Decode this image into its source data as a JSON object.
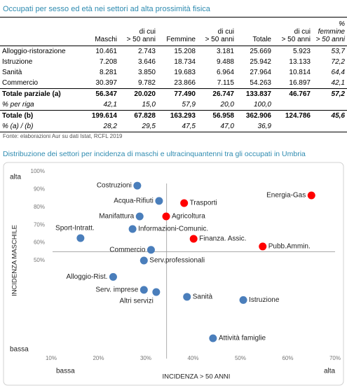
{
  "table": {
    "title": "Occupati per sesso ed età nei settori ad alta prossimità fisica",
    "header": [
      [
        ""
      ],
      [
        "Maschi"
      ],
      [
        "di cui",
        "> 50 anni"
      ],
      [
        "Femmine"
      ],
      [
        "di cui",
        "> 50 anni"
      ],
      [
        "Totale"
      ],
      [
        "di cui",
        "> 50 anni"
      ],
      [
        "%",
        "femmine",
        "> 50 anni"
      ]
    ],
    "rows": [
      [
        "Alloggio-ristorazione",
        "10.461",
        "2.743",
        "15.208",
        "3.181",
        "25.669",
        "5.923",
        "53,7"
      ],
      [
        "Istruzione",
        "7.208",
        "3.646",
        "18.734",
        "9.488",
        "25.942",
        "13.133",
        "72,2"
      ],
      [
        "Sanità",
        "8.281",
        "3.850",
        "19.683",
        "6.964",
        "27.964",
        "10.814",
        "64,4"
      ],
      [
        "Commercio",
        "30.397",
        "9.782",
        "23.866",
        "7.115",
        "54.263",
        "16.897",
        "42,1"
      ],
      [
        "Totale parziale (a)",
        "56.347",
        "20.020",
        "77.490",
        "26.747",
        "133.837",
        "46.767",
        "57,2"
      ],
      [
        "% per riga",
        "42,1",
        "15,0",
        "57,9",
        "20,0",
        "100,0",
        "",
        ""
      ],
      [
        "Totale (b)",
        "199.614",
        "67.828",
        "163.293",
        "56.958",
        "362.906",
        "124.786",
        "45,6"
      ],
      [
        "% (a) / (b)",
        "28,2",
        "29,5",
        "47,5",
        "47,0",
        "36,9",
        "",
        ""
      ]
    ],
    "source": "Fonte: elaborazioni Aur su dati Istat, RCFL 2019"
  },
  "chart_data": {
    "type": "scatter",
    "title": "Distribuzione dei settori per incidenza di maschi e ultracinquantenni tra gli occupati in Umbria",
    "x_label": "INCIDENZA > 50 ANNI",
    "y_label": "INCIDENZA MASCHILE",
    "x_low": "bassa",
    "x_high": "alta",
    "y_low": "bassa",
    "y_high": "alta",
    "point_labels": [
      "Costruzioni",
      "Acqua-Rifiuti",
      "Trasporti",
      "Energia-Gas",
      "Manifattura",
      "Agricoltura",
      "Informazioni-Comunic.",
      "Sport-Intratt.",
      "Finanza. Assic.",
      "Pubb.Ammin.",
      "Commercio",
      "Serv.professionali",
      "Alloggio-Rist.",
      "Serv. imprese",
      "Altri servizi",
      "Sanità",
      "Istruzione",
      "Attività famiglie"
    ],
    "x": [
      28.2,
      32.8,
      38.1,
      65.0,
      28.7,
      34.3,
      27.2,
      16.2,
      40.1,
      54.7,
      31.1,
      29.6,
      23.1,
      29.6,
      32.2,
      38.7,
      50.6,
      44.2
    ],
    "values": [
      92.1,
      83.5,
      82.3,
      86.6,
      74.8,
      74.8,
      67.7,
      62.6,
      62.2,
      57.9,
      56.0,
      50.0,
      40.8,
      33.5,
      32.3,
      29.6,
      27.8,
      6.3
    ],
    "colors": [
      "#4a7ebb",
      "#4a7ebb",
      "#ff0000",
      "#ff0000",
      "#4a7ebb",
      "#ff0000",
      "#4a7ebb",
      "#4a7ebb",
      "#ff0000",
      "#ff0000",
      "#4a7ebb",
      "#4a7ebb",
      "#4a7ebb",
      "#4a7ebb",
      "#4a7ebb",
      "#4a7ebb",
      "#4a7ebb",
      "#4a7ebb"
    ],
    "reference_x": 34.4,
    "reference_y": 55.0,
    "xlim": [
      10,
      70
    ],
    "ylim": [
      0,
      100
    ],
    "xticks": [
      {
        "value": 10,
        "label": "10%"
      },
      {
        "value": 20,
        "label": "20%"
      },
      {
        "value": 30,
        "label": "30%"
      },
      {
        "value": 40,
        "label": "40%"
      },
      {
        "value": 50,
        "label": "50%"
      },
      {
        "value": 60,
        "label": "60%"
      },
      {
        "value": 70,
        "label": "70%"
      }
    ],
    "yticks": [
      {
        "value": 50,
        "label": "50%"
      },
      {
        "value": 60,
        "label": "60%"
      },
      {
        "value": 70,
        "label": "70%"
      },
      {
        "value": 80,
        "label": "80%"
      },
      {
        "value": 90,
        "label": "90%"
      },
      {
        "value": 100,
        "label": "100%"
      }
    ]
  }
}
